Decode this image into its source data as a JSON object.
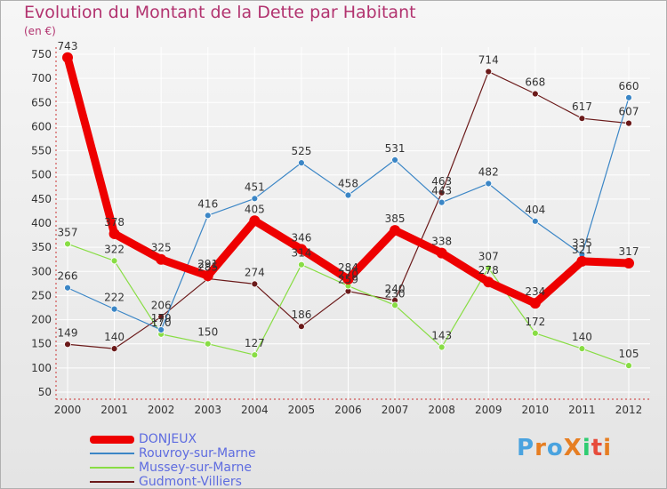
{
  "title": "Evolution du Montant de la Dette par Habitant",
  "unit_label": "(en €)",
  "logo": {
    "text": "ProXiti",
    "letters": [
      "P",
      "r",
      "o",
      "X",
      "i",
      "t",
      "i"
    ],
    "colors": [
      "#4aa3df",
      "#e67e22",
      "#4aa3df",
      "#e67e22",
      "#2ecc71",
      "#e74c3c",
      "#e67e22"
    ]
  },
  "chart_data": {
    "type": "line",
    "title": "Evolution du Montant de la Dette par Habitant",
    "ylabel": "(en €)",
    "x": [
      "2000",
      "2001",
      "2002",
      "2003",
      "2004",
      "2005",
      "2006",
      "2007",
      "2008",
      "2009",
      "2010",
      "2011",
      "2012"
    ],
    "yticks": [
      50,
      100,
      150,
      200,
      250,
      300,
      350,
      400,
      450,
      500,
      550,
      600,
      650,
      700,
      750
    ],
    "ylim": [
      50,
      750
    ],
    "grid": true,
    "legend_position": "bottom-left",
    "series": [
      {
        "name": "DONJEUX",
        "color": "#ee0000",
        "values": [
          743,
          378,
          325,
          291,
          405,
          346,
          284,
          385,
          338,
          278,
          234,
          321,
          317
        ],
        "labels": [
          "743",
          "378",
          "325",
          "291",
          "405",
          "346",
          "284",
          "385",
          "338",
          "278",
          "234",
          "321",
          "317"
        ]
      },
      {
        "name": "Rouvroy-sur-Marne",
        "color": "#3b86c6",
        "values": [
          266,
          222,
          179,
          416,
          451,
          525,
          458,
          531,
          443,
          482,
          404,
          335,
          660
        ],
        "labels": [
          "266",
          "222",
          "179",
          "416",
          "451",
          "525",
          "458",
          "531",
          "443",
          "482",
          "404",
          "335",
          "660"
        ]
      },
      {
        "name": "Mussey-sur-Marne",
        "color": "#88dd44",
        "values": [
          357,
          322,
          170,
          150,
          127,
          314,
          270,
          230,
          143,
          307,
          172,
          140,
          105
        ],
        "labels": [
          "357",
          "322",
          "170",
          "150",
          "127",
          "314",
          "270",
          "230",
          "143",
          "307",
          "172",
          "140",
          "105"
        ]
      },
      {
        "name": "Gudmont-Villiers",
        "color": "#6b1a1a",
        "values": [
          149,
          140,
          206,
          285,
          274,
          186,
          259,
          240,
          463,
          714,
          668,
          617,
          607
        ],
        "labels": [
          "149",
          "140",
          "206",
          "285",
          "274",
          "186",
          "259",
          "240",
          "463",
          "714",
          "668",
          "617",
          "607"
        ]
      }
    ]
  }
}
